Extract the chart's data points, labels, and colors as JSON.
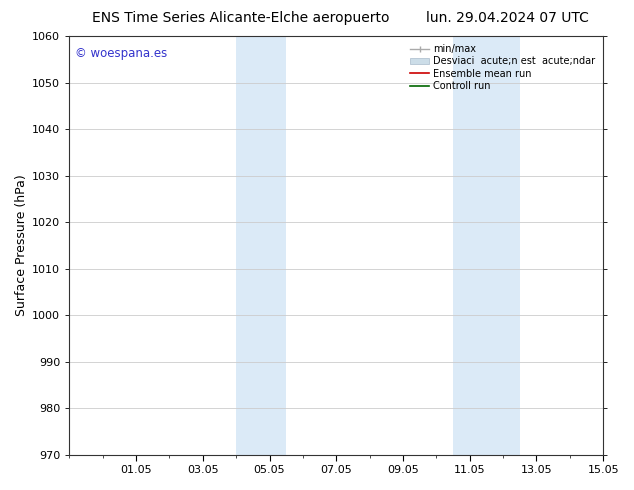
{
  "title_left": "ENS Time Series Alicante-Elche aeropuerto",
  "title_right": "lun. 29.04.2024 07 UTC",
  "ylabel": "Surface Pressure (hPa)",
  "ylim": [
    970,
    1060
  ],
  "yticks": [
    970,
    980,
    990,
    1000,
    1010,
    1020,
    1030,
    1040,
    1050,
    1060
  ],
  "xlim": [
    0,
    16
  ],
  "xtick_labels": [
    "01.05",
    "03.05",
    "05.05",
    "07.05",
    "09.05",
    "11.05",
    "13.05",
    "15.05"
  ],
  "xtick_positions": [
    2,
    4,
    6,
    8,
    10,
    12,
    14,
    16
  ],
  "shaded_bands": [
    {
      "x_start": 5.0,
      "x_end": 6.5,
      "color": "#dbeaf7"
    },
    {
      "x_start": 11.5,
      "x_end": 13.5,
      "color": "#dbeaf7"
    }
  ],
  "watermark_text": "© woespana.es",
  "watermark_color": "#3333cc",
  "bg_color": "#ffffff",
  "grid_color": "#cccccc",
  "title_fontsize": 10,
  "axis_label_fontsize": 9,
  "tick_fontsize": 8,
  "legend_fontsize": 7
}
